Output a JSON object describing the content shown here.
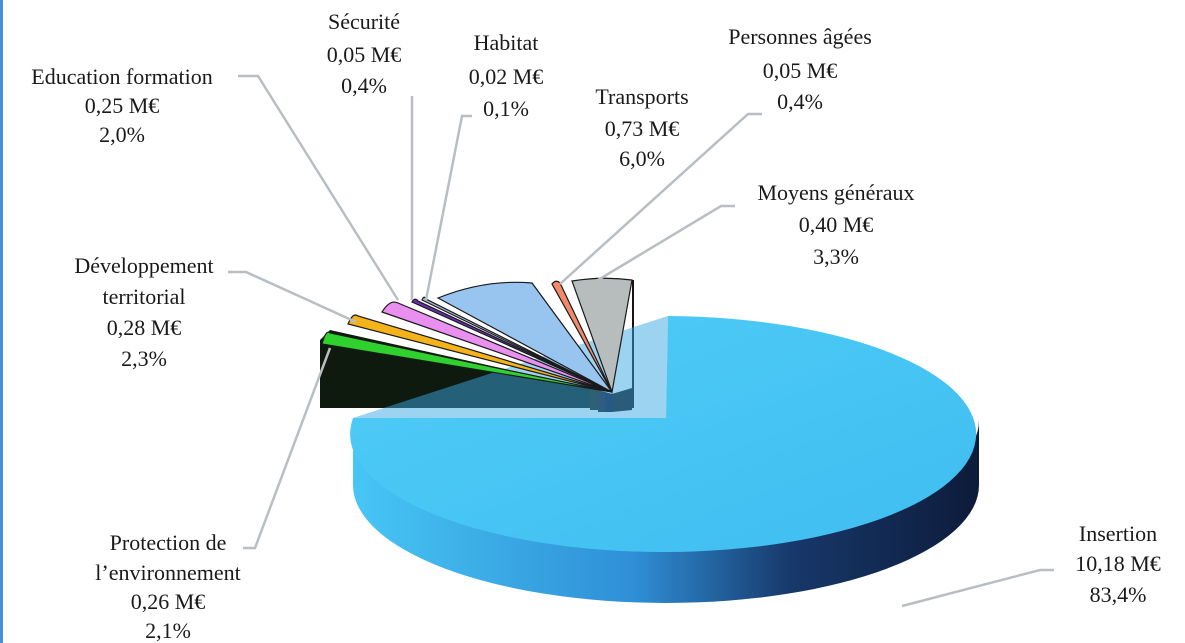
{
  "chart_data": {
    "type": "pie",
    "style": "3d-exploded",
    "title": "",
    "slices": [
      {
        "name": "Insertion",
        "value": 10.18,
        "amount_label": "10,18 M€",
        "percent_label": "83,4%",
        "color": "#47c6f5"
      },
      {
        "name": "Protection de l’environnement",
        "value": 0.26,
        "amount_label": "0,26 M€",
        "percent_label": "2,1%",
        "color": "#2ed12e"
      },
      {
        "name": "Développement territorial",
        "value": 0.28,
        "amount_label": "0,28 M€",
        "percent_label": "2,3%",
        "color": "#f4b21b"
      },
      {
        "name": "Education formation",
        "value": 0.25,
        "amount_label": "0,25 M€",
        "percent_label": "2,0%",
        "color": "#e98ff0"
      },
      {
        "name": "Sécurité",
        "value": 0.05,
        "amount_label": "0,05 M€",
        "percent_label": "0,4%",
        "color": "#6a2fb0"
      },
      {
        "name": "Habitat",
        "value": 0.02,
        "amount_label": "0,02 M€",
        "percent_label": "0,1%",
        "color": "#9db6d0"
      },
      {
        "name": "Transports",
        "value": 0.73,
        "amount_label": "0,73 M€",
        "percent_label": "6,0%",
        "color": "#98c4f0"
      },
      {
        "name": "Personnes âgées",
        "value": 0.05,
        "amount_label": "0,05 M€",
        "percent_label": "0,4%",
        "color": "#f08a6a"
      },
      {
        "name": "Moyens généraux",
        "value": 0.4,
        "amount_label": "0,40 M€",
        "percent_label": "3,3%",
        "color": "#b7bcbd"
      }
    ]
  }
}
